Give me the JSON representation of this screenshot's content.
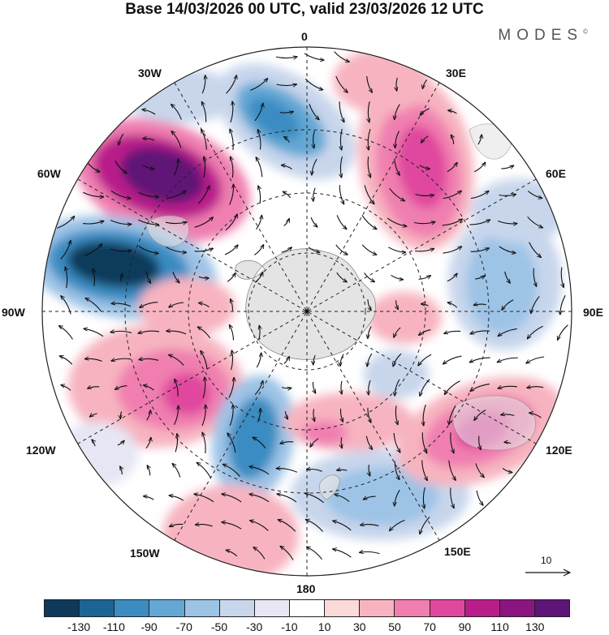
{
  "header": {
    "title": "Base 14/03/2026 00 UTC, valid 23/03/2026 12 UTC",
    "brand": "MODES"
  },
  "map": {
    "projection": "south polar stereographic",
    "longitude_labels": {
      "top": "0",
      "top_right": "30E",
      "right_upper": "60E",
      "right": "90E",
      "right_lower": "120E",
      "bottom_right": "150E",
      "bottom": "180",
      "bottom_left": "150W",
      "left_lower": "120W",
      "left": "90W",
      "left_upper": "60W",
      "top_left": "30W"
    },
    "colors": {
      "land": "#e4e4e4",
      "coast": "#888888",
      "graticule": "#222222",
      "arrows": "#111111"
    }
  },
  "vector_scale": {
    "label": "10"
  },
  "colorbar": {
    "tick_labels": [
      "-130",
      "-110",
      "-90",
      "-70",
      "-50",
      "-30",
      "-10",
      "10",
      "30",
      "50",
      "70",
      "90",
      "110",
      "130"
    ],
    "colors": [
      "#0d3a5c",
      "#1b6494",
      "#3a8cc2",
      "#63a7d4",
      "#9dc3e6",
      "#c8d6ec",
      "#e6e6f4",
      "#ffffff",
      "#fbdada",
      "#f7b4c0",
      "#f07fb0",
      "#e0479e",
      "#b81d8a",
      "#8a1580",
      "#5e1476"
    ]
  }
}
